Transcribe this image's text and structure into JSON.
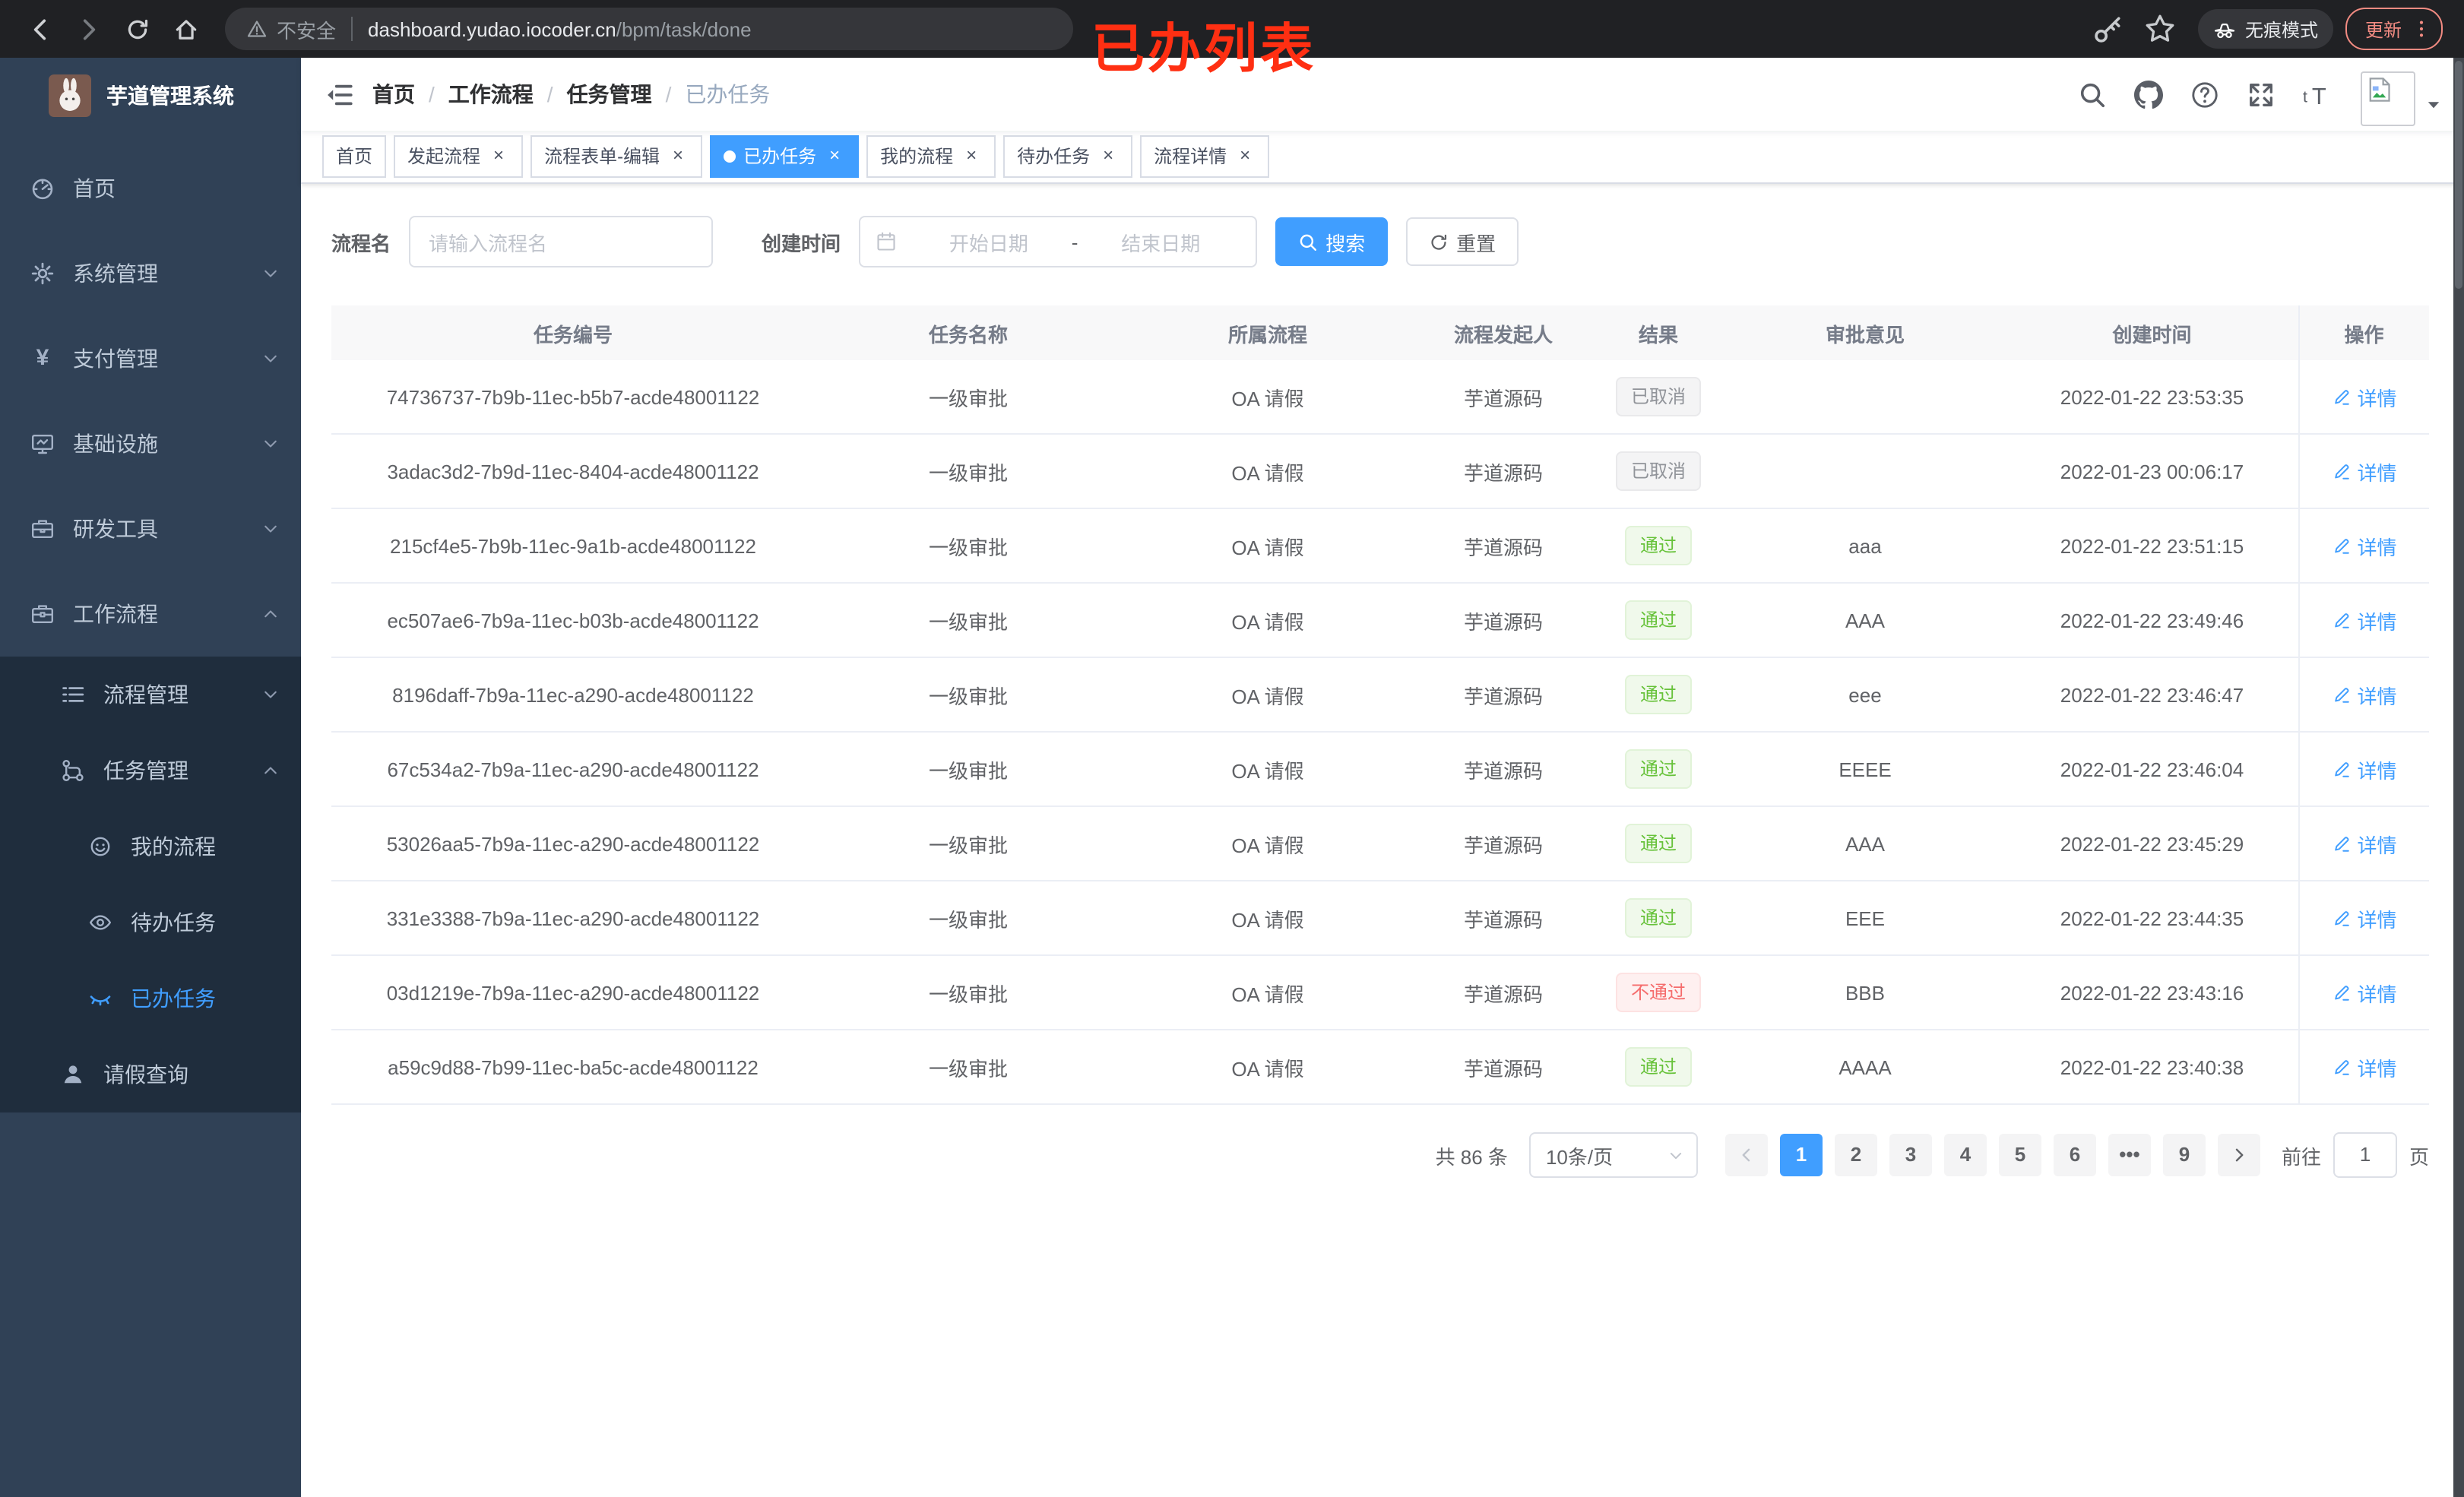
{
  "browser": {
    "security_label": "不安全",
    "url_domain": "dashboard.yudao.iocoder.cn",
    "url_path": "/bpm/task/done",
    "annotation": "已办列表",
    "incognito_label": "无痕模式",
    "update_label": "更新"
  },
  "sidebar": {
    "logo_title": "芋道管理系统",
    "items": [
      {
        "label": "首页",
        "icon": "dashboard-icon",
        "level": 1,
        "chevron": "",
        "active": false
      },
      {
        "label": "系统管理",
        "icon": "gear-icon",
        "level": 1,
        "chevron": "down",
        "active": false
      },
      {
        "label": "支付管理",
        "icon": "yen-icon",
        "level": 1,
        "chevron": "down",
        "active": false
      },
      {
        "label": "基础设施",
        "icon": "monitor-icon",
        "level": 1,
        "chevron": "down",
        "active": false
      },
      {
        "label": "研发工具",
        "icon": "toolbox-icon",
        "level": 1,
        "chevron": "down",
        "active": false
      },
      {
        "label": "工作流程",
        "icon": "briefcase-icon",
        "level": 1,
        "chevron": "up",
        "active": false
      },
      {
        "label": "流程管理",
        "icon": "list-icon",
        "level": 2,
        "chevron": "down",
        "active": false
      },
      {
        "label": "任务管理",
        "icon": "tree-icon",
        "level": 2,
        "chevron": "up",
        "active": false
      },
      {
        "label": "我的流程",
        "icon": "face-icon",
        "level": 3,
        "chevron": "",
        "active": false
      },
      {
        "label": "待办任务",
        "icon": "eye-open-icon",
        "level": 3,
        "chevron": "",
        "active": false
      },
      {
        "label": "已办任务",
        "icon": "eye-closed-icon",
        "level": 3,
        "chevron": "",
        "active": true
      },
      {
        "label": "请假查询",
        "icon": "user-icon",
        "level": 2,
        "chevron": "",
        "active": false
      }
    ]
  },
  "breadcrumb": {
    "links": [
      "首页",
      "工作流程",
      "任务管理"
    ],
    "current": "已办任务"
  },
  "tabs": [
    {
      "label": "首页",
      "closable": false,
      "active": false
    },
    {
      "label": "发起流程",
      "closable": true,
      "active": false
    },
    {
      "label": "流程表单-编辑",
      "closable": true,
      "active": false
    },
    {
      "label": "已办任务",
      "closable": true,
      "active": true
    },
    {
      "label": "我的流程",
      "closable": true,
      "active": false
    },
    {
      "label": "待办任务",
      "closable": true,
      "active": false
    },
    {
      "label": "流程详情",
      "closable": true,
      "active": false
    }
  ],
  "filter": {
    "name_label": "流程名",
    "name_placeholder": "请输入流程名",
    "time_label": "创建时间",
    "start_placeholder": "开始日期",
    "date_separator": "-",
    "end_placeholder": "结束日期",
    "search_label": "搜索",
    "reset_label": "重置"
  },
  "table": {
    "columns": [
      "任务编号",
      "任务名称",
      "所属流程",
      "流程发起人",
      "结果",
      "审批意见",
      "创建时间",
      "操作"
    ],
    "action_label": "详情",
    "rows": [
      {
        "id": "74736737-7b9b-11ec-b5b7-acde48001122",
        "name": "一级审批",
        "process": "OA 请假",
        "starter": "芋道源码",
        "result": "已取消",
        "result_type": "info",
        "comment": "",
        "time": "2022-01-22 23:53:35"
      },
      {
        "id": "3adac3d2-7b9d-11ec-8404-acde48001122",
        "name": "一级审批",
        "process": "OA 请假",
        "starter": "芋道源码",
        "result": "已取消",
        "result_type": "info",
        "comment": "",
        "time": "2022-01-23 00:06:17"
      },
      {
        "id": "215cf4e5-7b9b-11ec-9a1b-acde48001122",
        "name": "一级审批",
        "process": "OA 请假",
        "starter": "芋道源码",
        "result": "通过",
        "result_type": "success",
        "comment": "aaa",
        "time": "2022-01-22 23:51:15"
      },
      {
        "id": "ec507ae6-7b9a-11ec-b03b-acde48001122",
        "name": "一级审批",
        "process": "OA 请假",
        "starter": "芋道源码",
        "result": "通过",
        "result_type": "success",
        "comment": "AAA",
        "time": "2022-01-22 23:49:46"
      },
      {
        "id": "8196daff-7b9a-11ec-a290-acde48001122",
        "name": "一级审批",
        "process": "OA 请假",
        "starter": "芋道源码",
        "result": "通过",
        "result_type": "success",
        "comment": "eee",
        "time": "2022-01-22 23:46:47"
      },
      {
        "id": "67c534a2-7b9a-11ec-a290-acde48001122",
        "name": "一级审批",
        "process": "OA 请假",
        "starter": "芋道源码",
        "result": "通过",
        "result_type": "success",
        "comment": "EEEE",
        "time": "2022-01-22 23:46:04"
      },
      {
        "id": "53026aa5-7b9a-11ec-a290-acde48001122",
        "name": "一级审批",
        "process": "OA 请假",
        "starter": "芋道源码",
        "result": "通过",
        "result_type": "success",
        "comment": "AAA",
        "time": "2022-01-22 23:45:29"
      },
      {
        "id": "331e3388-7b9a-11ec-a290-acde48001122",
        "name": "一级审批",
        "process": "OA 请假",
        "starter": "芋道源码",
        "result": "通过",
        "result_type": "success",
        "comment": "EEE",
        "time": "2022-01-22 23:44:35"
      },
      {
        "id": "03d1219e-7b9a-11ec-a290-acde48001122",
        "name": "一级审批",
        "process": "OA 请假",
        "starter": "芋道源码",
        "result": "不通过",
        "result_type": "danger",
        "comment": "BBB",
        "time": "2022-01-22 23:43:16"
      },
      {
        "id": "a59c9d88-7b99-11ec-ba5c-acde48001122",
        "name": "一级审批",
        "process": "OA 请假",
        "starter": "芋道源码",
        "result": "通过",
        "result_type": "success",
        "comment": "AAAA",
        "time": "2022-01-22 23:40:38"
      }
    ]
  },
  "pagination": {
    "total_text": "共 86 条",
    "page_size": "10条/页",
    "pages": [
      "1",
      "2",
      "3",
      "4",
      "5",
      "6",
      "•••",
      "9"
    ],
    "active_page": "1",
    "goto_label": "前往",
    "goto_value": "1",
    "page_unit": "页"
  },
  "ui": {
    "close_glyph": "×",
    "breadcrumb_separator": "/",
    "yen_glyph": "¥",
    "font_size_glyph": "tT"
  },
  "colors": {
    "primary": "#409eff",
    "success": "#67c23a",
    "danger": "#f56c6c",
    "info": "#909399",
    "sidebar_bg": "#304156",
    "sidebar_sub_bg": "#1f2d3d",
    "annotation_red": "#ff2f12",
    "update_red": "#f28b82"
  }
}
